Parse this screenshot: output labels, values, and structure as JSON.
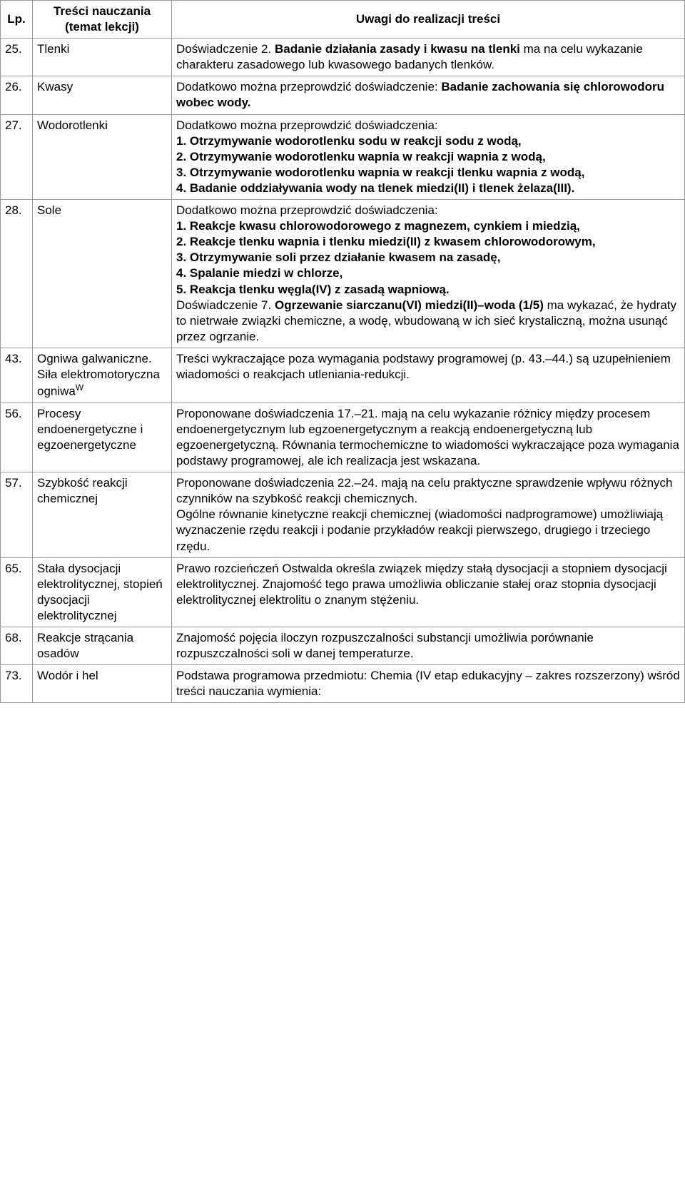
{
  "headers": {
    "lp": "Lp.",
    "topic": "Treści nauczania (temat lekcji)",
    "notes": "Uwagi do realizacji treści"
  },
  "rows": [
    {
      "lp": "25.",
      "topic": "Tlenki",
      "notes_html": "Doświadczenie 2. <b>Badanie działania zasady i kwasu na tlenki</b> ma na celu wykazanie charakteru zasadowego lub kwasowego badanych tlenków."
    },
    {
      "lp": "26.",
      "topic": "Kwasy",
      "notes_html": "Dodatkowo można przeprowdzić doświadczenie: <b>Badanie zachowania się chlorowodoru wobec wody.</b>"
    },
    {
      "lp": "27.",
      "topic": "Wodorotlenki",
      "notes_html": "Dodatkowo można przeprowdzić doświadczenia:<br><b>1. Otrzymywanie wodorotlenku sodu w reakcji sodu z wodą,<br>2. Otrzymywanie wodorotlenku wapnia w reakcji wapnia z wodą,<br>3. Otrzymywanie wodorotlenku wapnia w reakcji tlenku wapnia z wodą,<br>4. Badanie oddziaływania wody na tlenek miedzi(II) i tlenek żelaza(III).</b>"
    },
    {
      "lp": "28.",
      "topic": "Sole",
      "notes_html": "Dodatkowo można przeprowdzić doświadczenia:<br><b>1. Reakcje kwasu chlorowodorowego z magnezem, cynkiem i miedzią,<br>2. Reakcje tlenku wapnia i tlenku miedzi(II) z kwasem chlorowodorowym,<br>3. Otrzymywanie soli przez działanie kwasem na zasadę,<br>4. Spalanie miedzi w chlorze,<br>5. Reakcja tlenku węgla(IV) z zasadą wapniową.</b><br>Doświadczenie 7. <b>Ogrzewanie siarczanu(VI) miedzi(II)–woda (1/5)</b> ma wykazać, że hydraty to nietrwałe  związki chemiczne, a wodę, wbudowaną w ich sieć krystaliczną, można usunąć przez ogrzanie."
    },
    {
      "lp": "43.",
      "topic_html": "Ogniwa galwaniczne. Siła elektromotoryczna ogniwa<sup>W</sup>",
      "notes_html": "Treści wykraczające poza wymagania podstawy programowej (p. 43.–44.) są uzupełnieniem wiadomości o reakcjach utleniania-redukcji."
    },
    {
      "lp": "56.",
      "topic": "Procesy endoenergetyczne i egzoenergetyczne",
      "notes_html": "Proponowane doświadczenia 17.–21. mają na celu wykazanie różnicy między procesem endoenergetycznym lub egzoenergetycznym a reakcją endoenergetyczną lub egzoenergetyczną. Równania termochemiczne to wiadomości wykraczające poza wymagania podstawy programowej, ale ich realizacja jest wskazana."
    },
    {
      "lp": "57.",
      "topic": "Szybkość reakcji chemicznej",
      "notes_html": "Proponowane doświadczenia 22.–24. mają na celu praktyczne sprawdzenie wpływu różnych czynników na szybkość reakcji chemicznych.<br>Ogólne równanie kinetyczne reakcji chemicznej (wiadomości nadprogramowe) umożliwiają wyznaczenie rzędu reakcji i podanie przykładów reakcji pierwszego, drugiego i trzeciego rzędu."
    },
    {
      "lp": "65.",
      "topic": "Stała dysocjacji elektrolitycznej, stopień dysocjacji elektrolitycznej",
      "notes_html": "Prawo rozcieńczeń Ostwalda określa związek między stałą dysocjacji a stopniem dysocjacji elektrolitycznej. Znajomość tego prawa umożliwia obliczanie stałej oraz stopnia dysocjacji elektrolitycznej elektrolitu o znanym stężeniu."
    },
    {
      "lp": "68.",
      "topic": "Reakcje strącania osadów",
      "notes_html": "Znajomość pojęcia iloczyn rozpuszczalności substancji umożliwia porównanie rozpuszczalności soli w danej temperaturze."
    },
    {
      "lp": "73.",
      "topic": "Wodór i hel",
      "notes_html": "Podstawa programowa przedmiotu: Chemia (IV etap edukacyjny – zakres rozszerzony) wśród treści nauczania wymienia:"
    }
  ]
}
